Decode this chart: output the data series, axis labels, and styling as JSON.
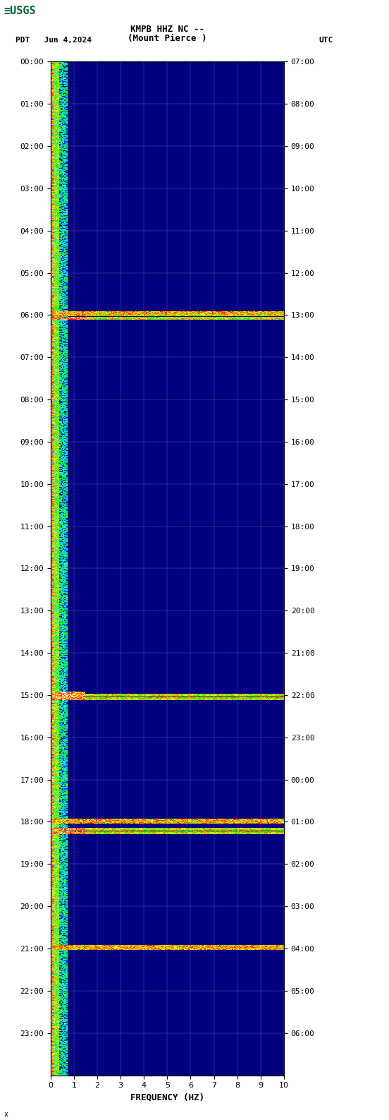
{
  "title_line1": "KMPB HHZ NC --",
  "title_line2": "(Mount Pierce )",
  "left_label": "PDT   Jun 4,2024",
  "right_label": "UTC",
  "xlabel": "FREQUENCY (HZ)",
  "freq_min": 0,
  "freq_max": 10,
  "time_hours": 24,
  "pdt_start": "00:00",
  "utc_start": "07:00",
  "left_ticks": [
    "00:00",
    "01:00",
    "02:00",
    "03:00",
    "04:00",
    "05:00",
    "06:00",
    "07:00",
    "08:00",
    "09:00",
    "10:00",
    "11:00",
    "12:00",
    "13:00",
    "14:00",
    "15:00",
    "16:00",
    "17:00",
    "18:00",
    "19:00",
    "20:00",
    "21:00",
    "22:00",
    "23:00"
  ],
  "right_ticks": [
    "07:00",
    "08:00",
    "09:00",
    "10:00",
    "11:00",
    "12:00",
    "13:00",
    "14:00",
    "15:00",
    "16:00",
    "17:00",
    "18:00",
    "19:00",
    "20:00",
    "21:00",
    "22:00",
    "23:00",
    "00:00",
    "01:00",
    "02:00",
    "03:00",
    "04:00",
    "05:00",
    "06:00"
  ],
  "bg_color": "#ffffff",
  "spectrogram_bg": "#000080",
  "low_freq_colors": [
    "#ff0000",
    "#ff7f00",
    "#ffff00",
    "#00ff00",
    "#00ffff"
  ],
  "figure_width": 5.52,
  "figure_height": 15.87
}
